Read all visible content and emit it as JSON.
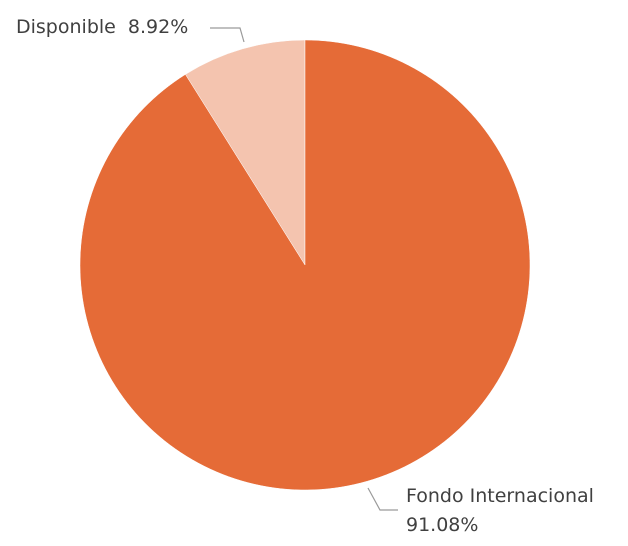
{
  "chart_data": {
    "type": "pie",
    "title": "",
    "slices": [
      {
        "label": "Disponible",
        "value": 8.92,
        "value_label": "8.92%",
        "color": "#F4C4AF"
      },
      {
        "label": "Fondo Internacional",
        "value": 91.08,
        "value_label": "91.08%",
        "color": "#E56B37"
      }
    ],
    "start_angle_deg": 0,
    "direction": "counterclockwise",
    "legend": "none",
    "data_labels": "outside-with-leader-lines"
  }
}
